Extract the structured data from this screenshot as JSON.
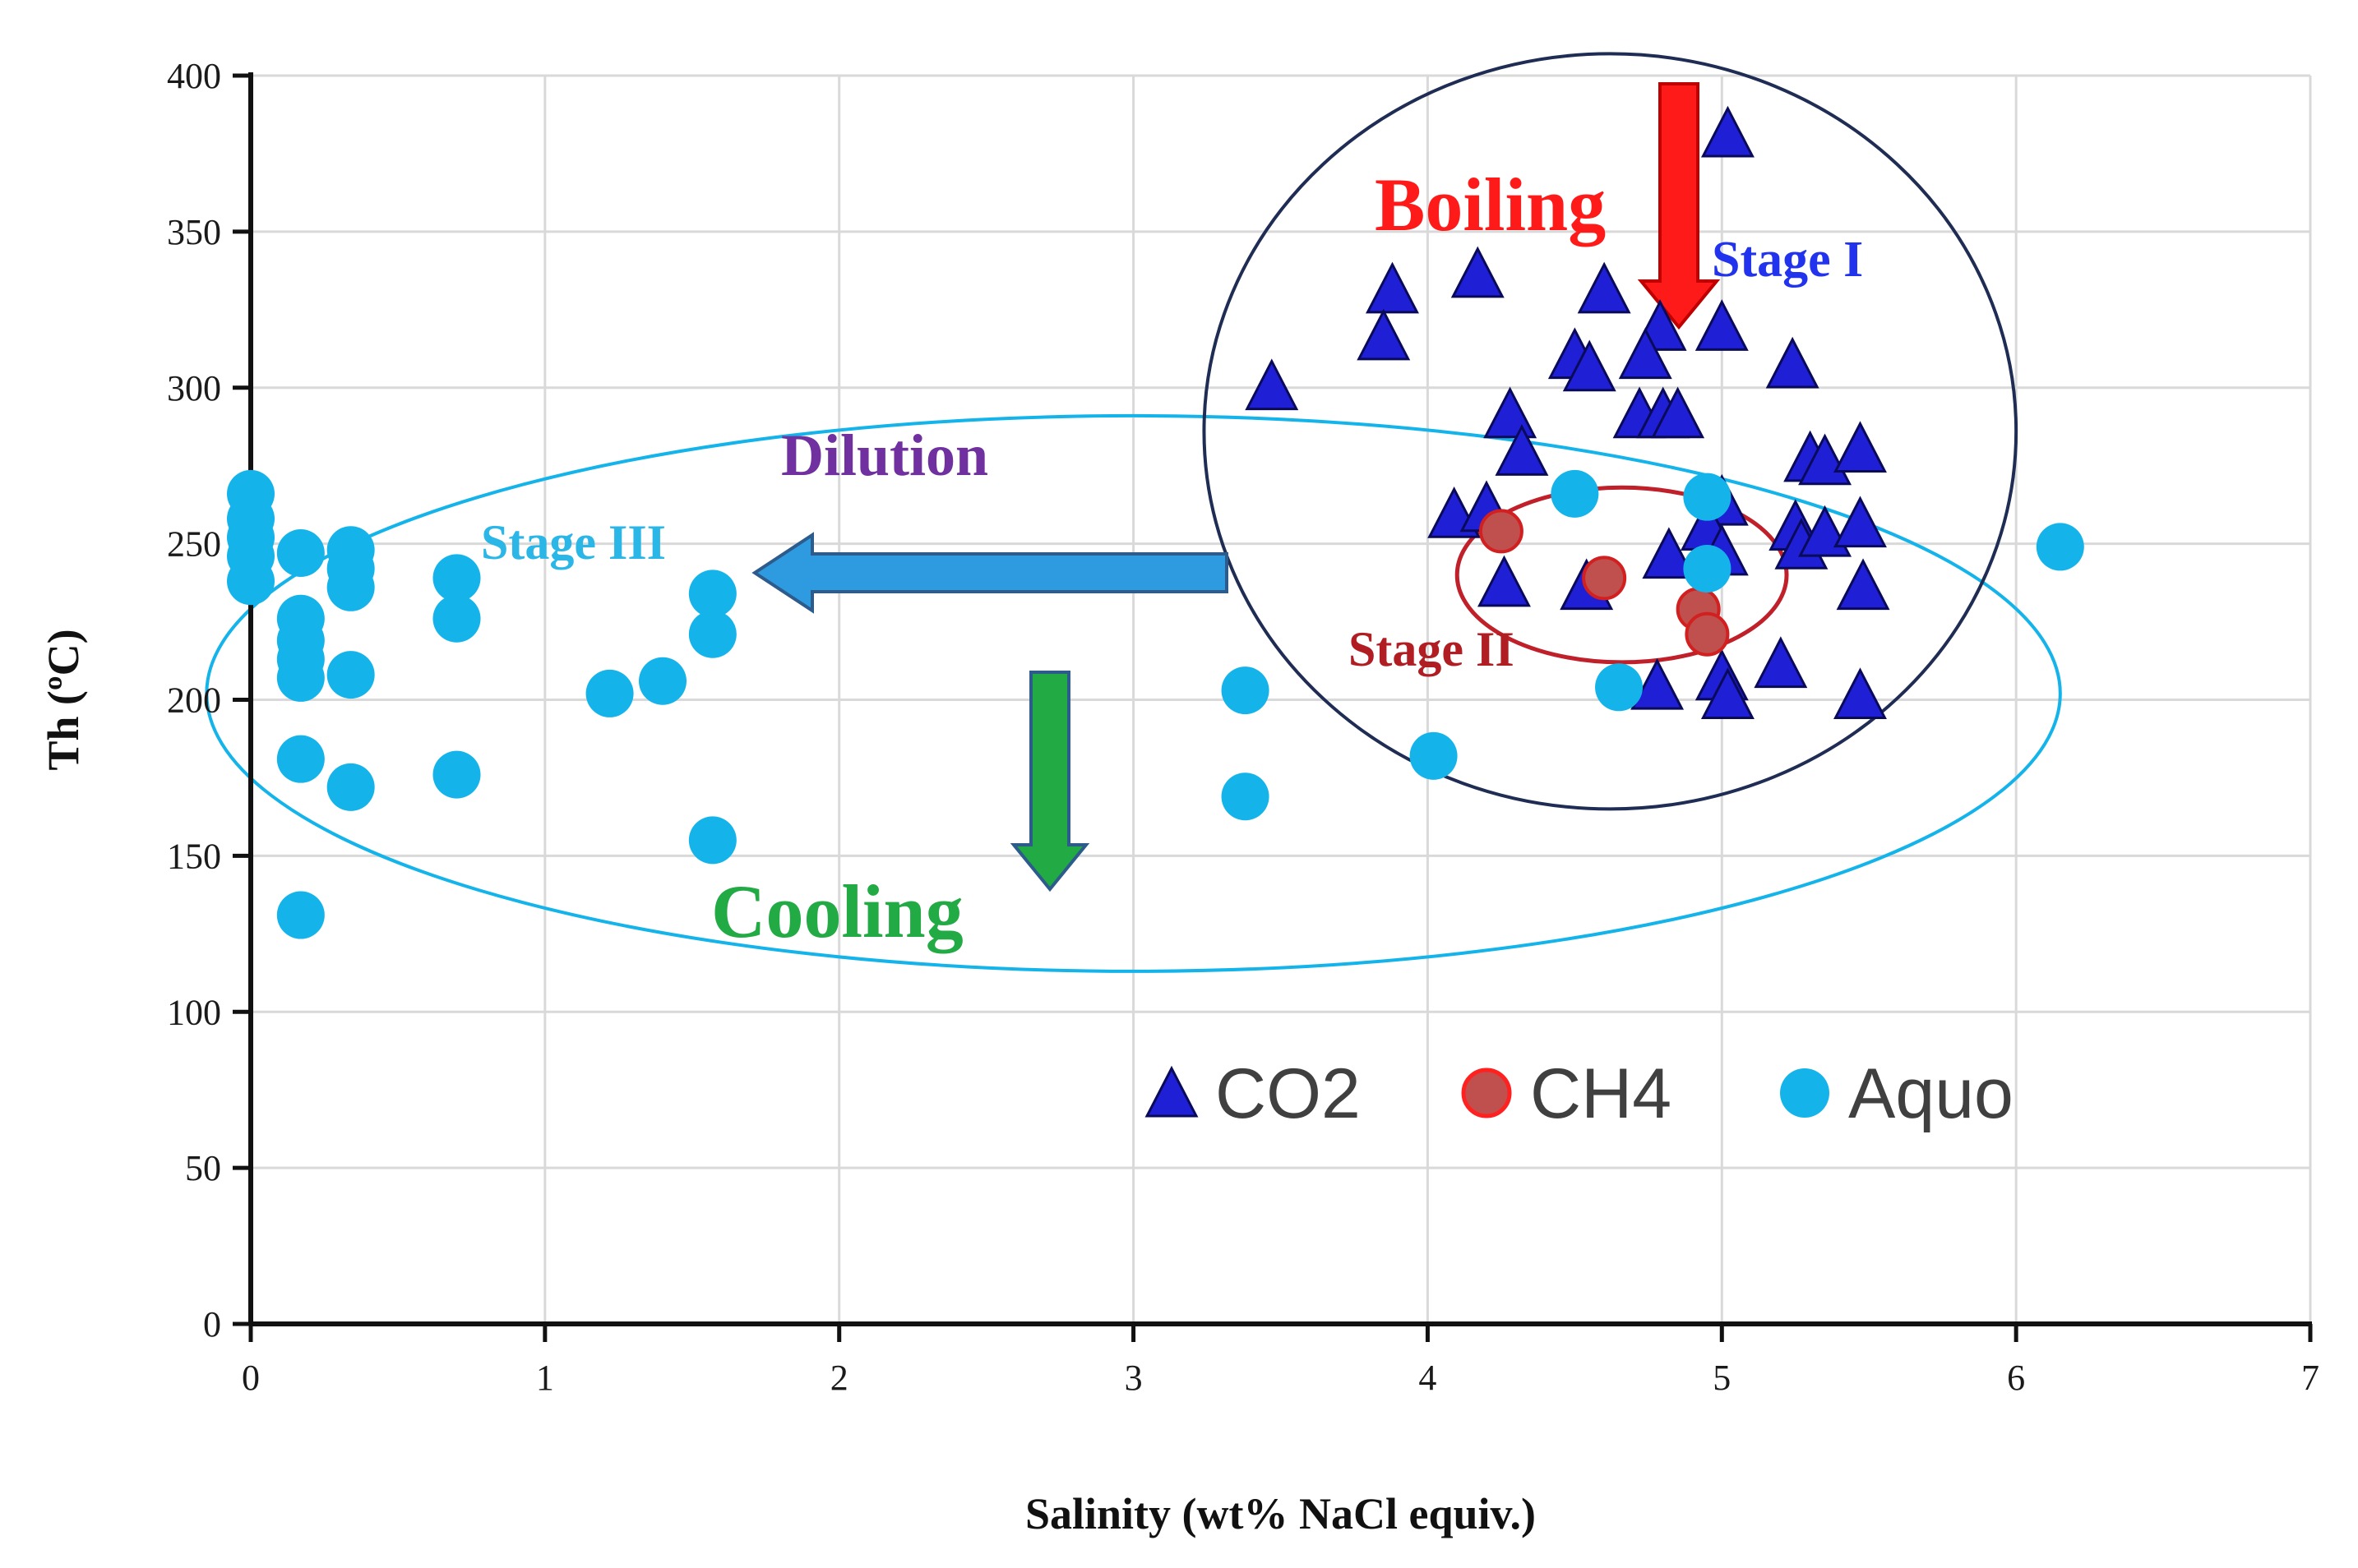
{
  "chart_data": {
    "type": "scatter",
    "title": "",
    "xlabel": "Salinity (wt% NaCl equiv.)",
    "ylabel": "Th (ºC)",
    "xlim": [
      0,
      7
    ],
    "ylim": [
      0,
      400
    ],
    "xticks": [
      0,
      1,
      2,
      3,
      4,
      5,
      6,
      7
    ],
    "yticks": [
      0,
      50,
      100,
      150,
      200,
      250,
      300,
      350,
      400
    ],
    "grid": true,
    "legend_position": "bottom-right",
    "colors": {
      "co2": "#1f1fd6",
      "ch4": "#c0504d",
      "aquo": "#14b4eb",
      "stage1_circle": "#1f2d55",
      "stage2_circle": "#c0202a",
      "stage3_ellipse": "#14b4eb",
      "boiling": "#ff1a1a",
      "dilution": "#7030a0",
      "cooling": "#22aa44",
      "stage1_text": "#2233ee",
      "stage2_text": "#b01e24",
      "stage3_text": "#2ab6e6"
    },
    "series": [
      {
        "name": "CO2",
        "marker": "triangle",
        "points": [
          [
            5.02,
            380
          ],
          [
            3.88,
            330
          ],
          [
            4.17,
            335
          ],
          [
            4.6,
            330
          ],
          [
            3.85,
            315
          ],
          [
            4.79,
            318
          ],
          [
            5.0,
            318
          ],
          [
            4.5,
            309
          ],
          [
            4.55,
            305
          ],
          [
            4.74,
            309
          ],
          [
            5.24,
            306
          ],
          [
            3.47,
            299
          ],
          [
            4.28,
            290
          ],
          [
            4.72,
            290
          ],
          [
            4.8,
            290
          ],
          [
            4.85,
            290
          ],
          [
            4.32,
            278
          ],
          [
            5.3,
            276
          ],
          [
            5.35,
            275
          ],
          [
            5.47,
            279
          ],
          [
            4.09,
            258
          ],
          [
            4.2,
            260
          ],
          [
            5.0,
            262
          ],
          [
            4.95,
            254
          ],
          [
            5.25,
            254
          ],
          [
            5.27,
            248
          ],
          [
            5.35,
            252
          ],
          [
            5.47,
            255
          ],
          [
            4.26,
            236
          ],
          [
            4.54,
            235
          ],
          [
            4.82,
            245
          ],
          [
            5.0,
            246
          ],
          [
            5.48,
            235
          ],
          [
            5.2,
            210
          ],
          [
            4.78,
            203
          ],
          [
            5.0,
            206
          ],
          [
            5.02,
            200
          ],
          [
            5.47,
            200
          ]
        ]
      },
      {
        "name": "CH4",
        "marker": "circle",
        "points": [
          [
            4.25,
            254
          ],
          [
            4.6,
            239
          ],
          [
            4.92,
            229
          ],
          [
            4.95,
            221
          ]
        ]
      },
      {
        "name": "Aquo",
        "marker": "circle",
        "points": [
          [
            0.0,
            266
          ],
          [
            0.0,
            258
          ],
          [
            0.0,
            252
          ],
          [
            0.0,
            246
          ],
          [
            0.0,
            238
          ],
          [
            0.17,
            247
          ],
          [
            0.34,
            248
          ],
          [
            0.34,
            242
          ],
          [
            0.34,
            236
          ],
          [
            0.7,
            239
          ],
          [
            0.7,
            226
          ],
          [
            0.17,
            226
          ],
          [
            0.17,
            219
          ],
          [
            0.17,
            213
          ],
          [
            0.17,
            207
          ],
          [
            0.34,
            208
          ],
          [
            1.57,
            234
          ],
          [
            1.57,
            221
          ],
          [
            1.22,
            202
          ],
          [
            1.4,
            206
          ],
          [
            0.17,
            181
          ],
          [
            0.34,
            172
          ],
          [
            0.7,
            176
          ],
          [
            1.57,
            155
          ],
          [
            0.17,
            131
          ],
          [
            3.38,
            203
          ],
          [
            3.38,
            169
          ],
          [
            4.02,
            182
          ],
          [
            4.5,
            266
          ],
          [
            4.95,
            265
          ],
          [
            4.95,
            242
          ],
          [
            4.65,
            204
          ],
          [
            6.15,
            249
          ]
        ]
      }
    ],
    "annotations": {
      "boiling": "Boiling",
      "stage1": "Stage I",
      "stage2": "Stage II",
      "stage3": "Stage III",
      "dilution": "Dilution",
      "cooling": "Cooling"
    }
  }
}
